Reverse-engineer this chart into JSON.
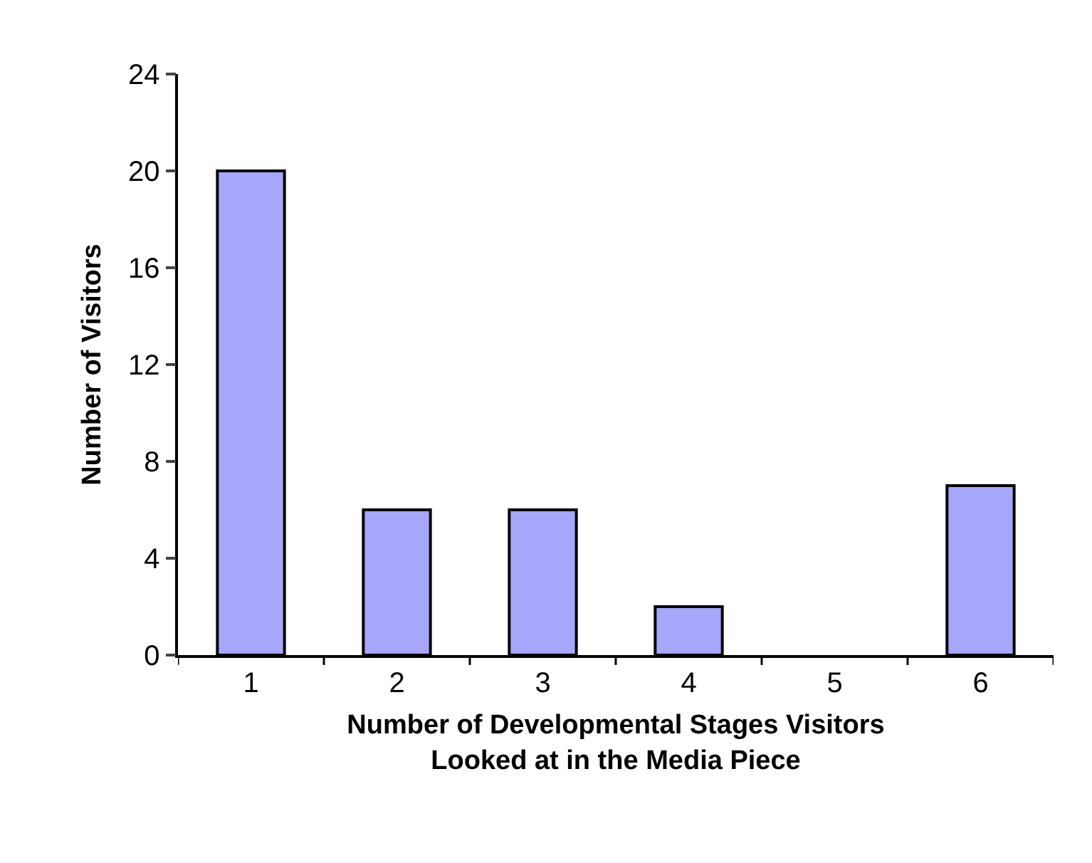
{
  "chart_data": {
    "type": "bar",
    "xlabel": "Number of Developmental Stages Visitors Looked at in the Media Piece",
    "ylabel": "Number of Visitors",
    "categories": [
      "1",
      "2",
      "3",
      "4",
      "5",
      "6"
    ],
    "values": [
      20,
      6,
      6,
      2,
      0,
      7
    ],
    "color": "#a6a6fa",
    "ylim": [
      0,
      24
    ],
    "yticks": [
      0,
      4,
      8,
      12,
      16,
      20,
      24
    ]
  }
}
